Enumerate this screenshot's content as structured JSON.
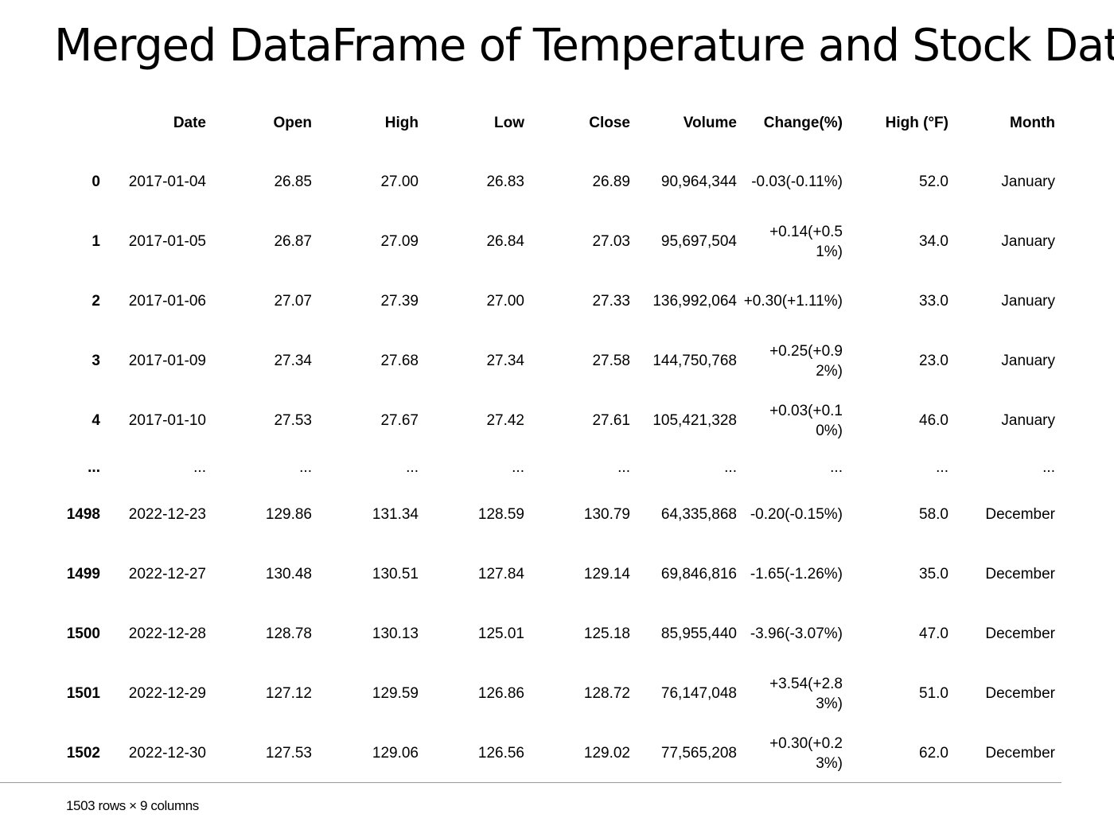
{
  "title": "Merged DataFrame of Temperature and Stock Data",
  "table": {
    "columns": [
      "Date",
      "Open",
      "High",
      "Low",
      "Close",
      "Volume",
      "Change(%)",
      "High (°F)",
      "Month"
    ],
    "rows": [
      {
        "index": "0",
        "cells": [
          "2017-01-04",
          "26.85",
          "27.00",
          "26.83",
          "26.89",
          "90,964,344",
          "-0.03(-0.11%)",
          "52.0",
          "January"
        ]
      },
      {
        "index": "1",
        "cells": [
          "2017-01-05",
          "26.87",
          "27.09",
          "26.84",
          "27.03",
          "95,697,504",
          "+0.14(+0.51%)",
          "34.0",
          "January"
        ]
      },
      {
        "index": "2",
        "cells": [
          "2017-01-06",
          "27.07",
          "27.39",
          "27.00",
          "27.33",
          "136,992,064",
          "+0.30(+1.11%)",
          "33.0",
          "January"
        ]
      },
      {
        "index": "3",
        "cells": [
          "2017-01-09",
          "27.34",
          "27.68",
          "27.34",
          "27.58",
          "144,750,768",
          "+0.25(+0.92%)",
          "23.0",
          "January"
        ]
      },
      {
        "index": "4",
        "cells": [
          "2017-01-10",
          "27.53",
          "27.67",
          "27.42",
          "27.61",
          "105,421,328",
          "+0.03(+0.10%)",
          "46.0",
          "January"
        ]
      },
      {
        "index": "...",
        "cells": [
          "...",
          "...",
          "...",
          "...",
          "...",
          "...",
          "...",
          "...",
          "..."
        ]
      },
      {
        "index": "1498",
        "cells": [
          "2022-12-23",
          "129.86",
          "131.34",
          "128.59",
          "130.79",
          "64,335,868",
          "-0.20(-0.15%)",
          "58.0",
          "December"
        ]
      },
      {
        "index": "1499",
        "cells": [
          "2022-12-27",
          "130.48",
          "130.51",
          "127.84",
          "129.14",
          "69,846,816",
          "-1.65(-1.26%)",
          "35.0",
          "December"
        ]
      },
      {
        "index": "1500",
        "cells": [
          "2022-12-28",
          "128.78",
          "130.13",
          "125.01",
          "125.18",
          "85,955,440",
          "-3.96(-3.07%)",
          "47.0",
          "December"
        ]
      },
      {
        "index": "1501",
        "cells": [
          "2022-12-29",
          "127.12",
          "129.59",
          "126.86",
          "128.72",
          "76,147,048",
          "+3.54(+2.83%)",
          "51.0",
          "December"
        ]
      },
      {
        "index": "1502",
        "cells": [
          "2022-12-30",
          "127.53",
          "129.06",
          "126.56",
          "129.02",
          "77,565,208",
          "+0.30(+0.23%)",
          "62.0",
          "December"
        ]
      }
    ],
    "shape_text": "1503 rows × 9 columns"
  }
}
